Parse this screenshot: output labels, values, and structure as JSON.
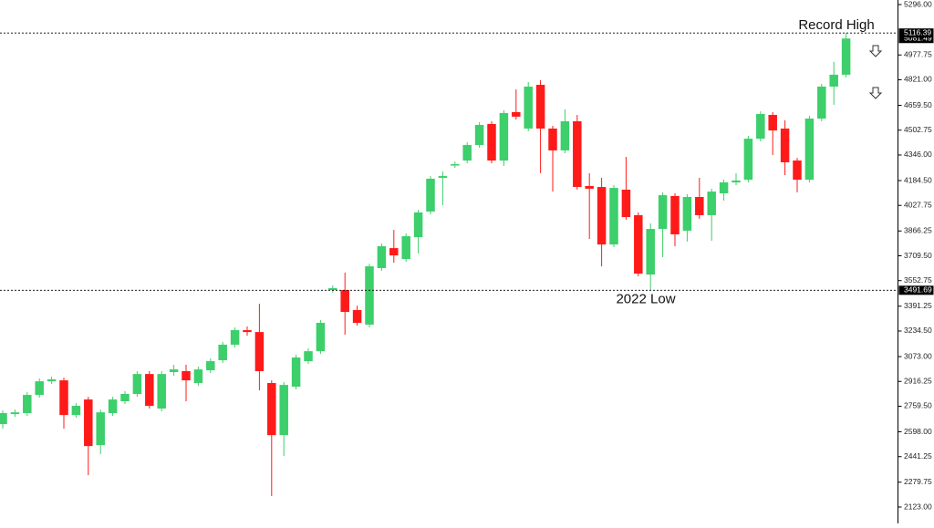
{
  "chart_data": {
    "type": "candlestick",
    "open": [
      2647,
      2710,
      2716,
      2831,
      2917,
      2923,
      2704,
      2802,
      2514,
      2716,
      2791,
      2837,
      2963,
      2745,
      2975,
      2981,
      2906,
      2987,
      3050,
      3148,
      3240,
      3228,
      2906,
      2577,
      2883,
      3044,
      3107,
      3493,
      3493,
      3367,
      3275,
      3632,
      3758,
      3689,
      3827,
      3989,
      4202,
      4282,
      4311,
      4409,
      4542,
      4311,
      4617,
      4513,
      4789,
      4513,
      4375,
      4559,
      4150,
      4144,
      3781,
      4127,
      3966,
      3591,
      3879,
      4087,
      3868,
      4081,
      3966,
      4104,
      4173,
      4190,
      4449,
      4599,
      4513,
      4311,
      4190,
      4576,
      4778,
      4853
    ],
    "high": [
      2733,
      2739,
      2848,
      2935,
      2946,
      2940,
      2779,
      2819,
      2739,
      2819,
      2854,
      2981,
      2981,
      2981,
      3021,
      3021,
      3010,
      3061,
      3165,
      3257,
      3263,
      3407,
      2923,
      2912,
      3084,
      3125,
      3303,
      3522,
      3603,
      3395,
      3660,
      3787,
      3873,
      3850,
      4000,
      4213,
      4242,
      4305,
      4426,
      4553,
      4559,
      4628,
      4760,
      4807,
      4818,
      4530,
      4634,
      4599,
      4231,
      4202,
      4156,
      4334,
      3983,
      3914,
      4110,
      4104,
      4098,
      4202,
      4133,
      4190,
      4231,
      4467,
      4622,
      4617,
      4565,
      4328,
      4593,
      4795,
      4934,
      5116.39
    ],
    "low": [
      2618,
      2693,
      2698,
      2814,
      2900,
      2618,
      2687,
      2324,
      2457,
      2698,
      2773,
      2819,
      2745,
      2727,
      2952,
      2791,
      2889,
      2969,
      3033,
      3130,
      3205,
      2860,
      2192,
      2445,
      2866,
      3027,
      3090,
      3476,
      3211,
      3269,
      3257,
      3614,
      3666,
      3672,
      3724,
      3971,
      4029,
      4265,
      4294,
      4392,
      4294,
      4277,
      4570,
      4496,
      4231,
      4115,
      4357,
      4127,
      3816,
      3643,
      3764,
      3937,
      3580,
      3491.69,
      3701,
      3770,
      3799,
      3943,
      3804,
      4058,
      4156,
      4173,
      4432,
      4346,
      4219,
      4110,
      4173,
      4559,
      4663,
      4836
    ],
    "close": [
      2716,
      2721,
      2831,
      2917,
      2929,
      2704,
      2762,
      2508,
      2721,
      2802,
      2837,
      2963,
      2762,
      2963,
      2992,
      2923,
      2992,
      3044,
      3148,
      3240,
      3228,
      2981,
      2577,
      2894,
      3067,
      3107,
      3286,
      3505,
      3355,
      3286,
      3643,
      3770,
      3712,
      3833,
      3983,
      4196,
      4213,
      4288,
      4409,
      4536,
      4311,
      4611,
      4588,
      4778,
      4513,
      4375,
      4559,
      4144,
      4133,
      3781,
      4138,
      3954,
      3597,
      3879,
      4092,
      3845,
      4081,
      3966,
      4115,
      4173,
      4185,
      4449,
      4605,
      4501,
      4300,
      4190,
      4576,
      4778,
      4853,
      5081.49
    ],
    "up_color": "#3ccf6b",
    "down_color": "#ff1a1a",
    "ylim": [
      2123,
      5296
    ],
    "yticks": [
      {
        "value": 2123,
        "label": "2123.00"
      },
      {
        "value": 2279.75,
        "label": "2279.75"
      },
      {
        "value": 2441.25,
        "label": "2441.25"
      },
      {
        "value": 2598,
        "label": "2598.00"
      },
      {
        "value": 2759.5,
        "label": "2759.50"
      },
      {
        "value": 2916.25,
        "label": "2916.25"
      },
      {
        "value": 3073,
        "label": "3073.00"
      },
      {
        "value": 3234.5,
        "label": "3234.50"
      },
      {
        "value": 3391.25,
        "label": "3391.25"
      },
      {
        "value": 3552.75,
        "label": "3552.75"
      },
      {
        "value": 3709.5,
        "label": "3709.50"
      },
      {
        "value": 3866.25,
        "label": "3866.25"
      },
      {
        "value": 4027.75,
        "label": "4027.75"
      },
      {
        "value": 4184.5,
        "label": "4184.50"
      },
      {
        "value": 4346,
        "label": "4346.00"
      },
      {
        "value": 4502.75,
        "label": "4502.75"
      },
      {
        "value": 4659.5,
        "label": "4659.50"
      },
      {
        "value": 4821,
        "label": "4821.00"
      },
      {
        "value": 4977.75,
        "label": "4977.75"
      },
      {
        "value": 5296,
        "label": "5296.00"
      }
    ],
    "levels": [
      5116.39,
      3491.69
    ],
    "annotations": [
      {
        "text": "Record High",
        "value": 5116.39
      },
      {
        "text": "2022 Low",
        "value": 3491.69
      }
    ]
  }
}
